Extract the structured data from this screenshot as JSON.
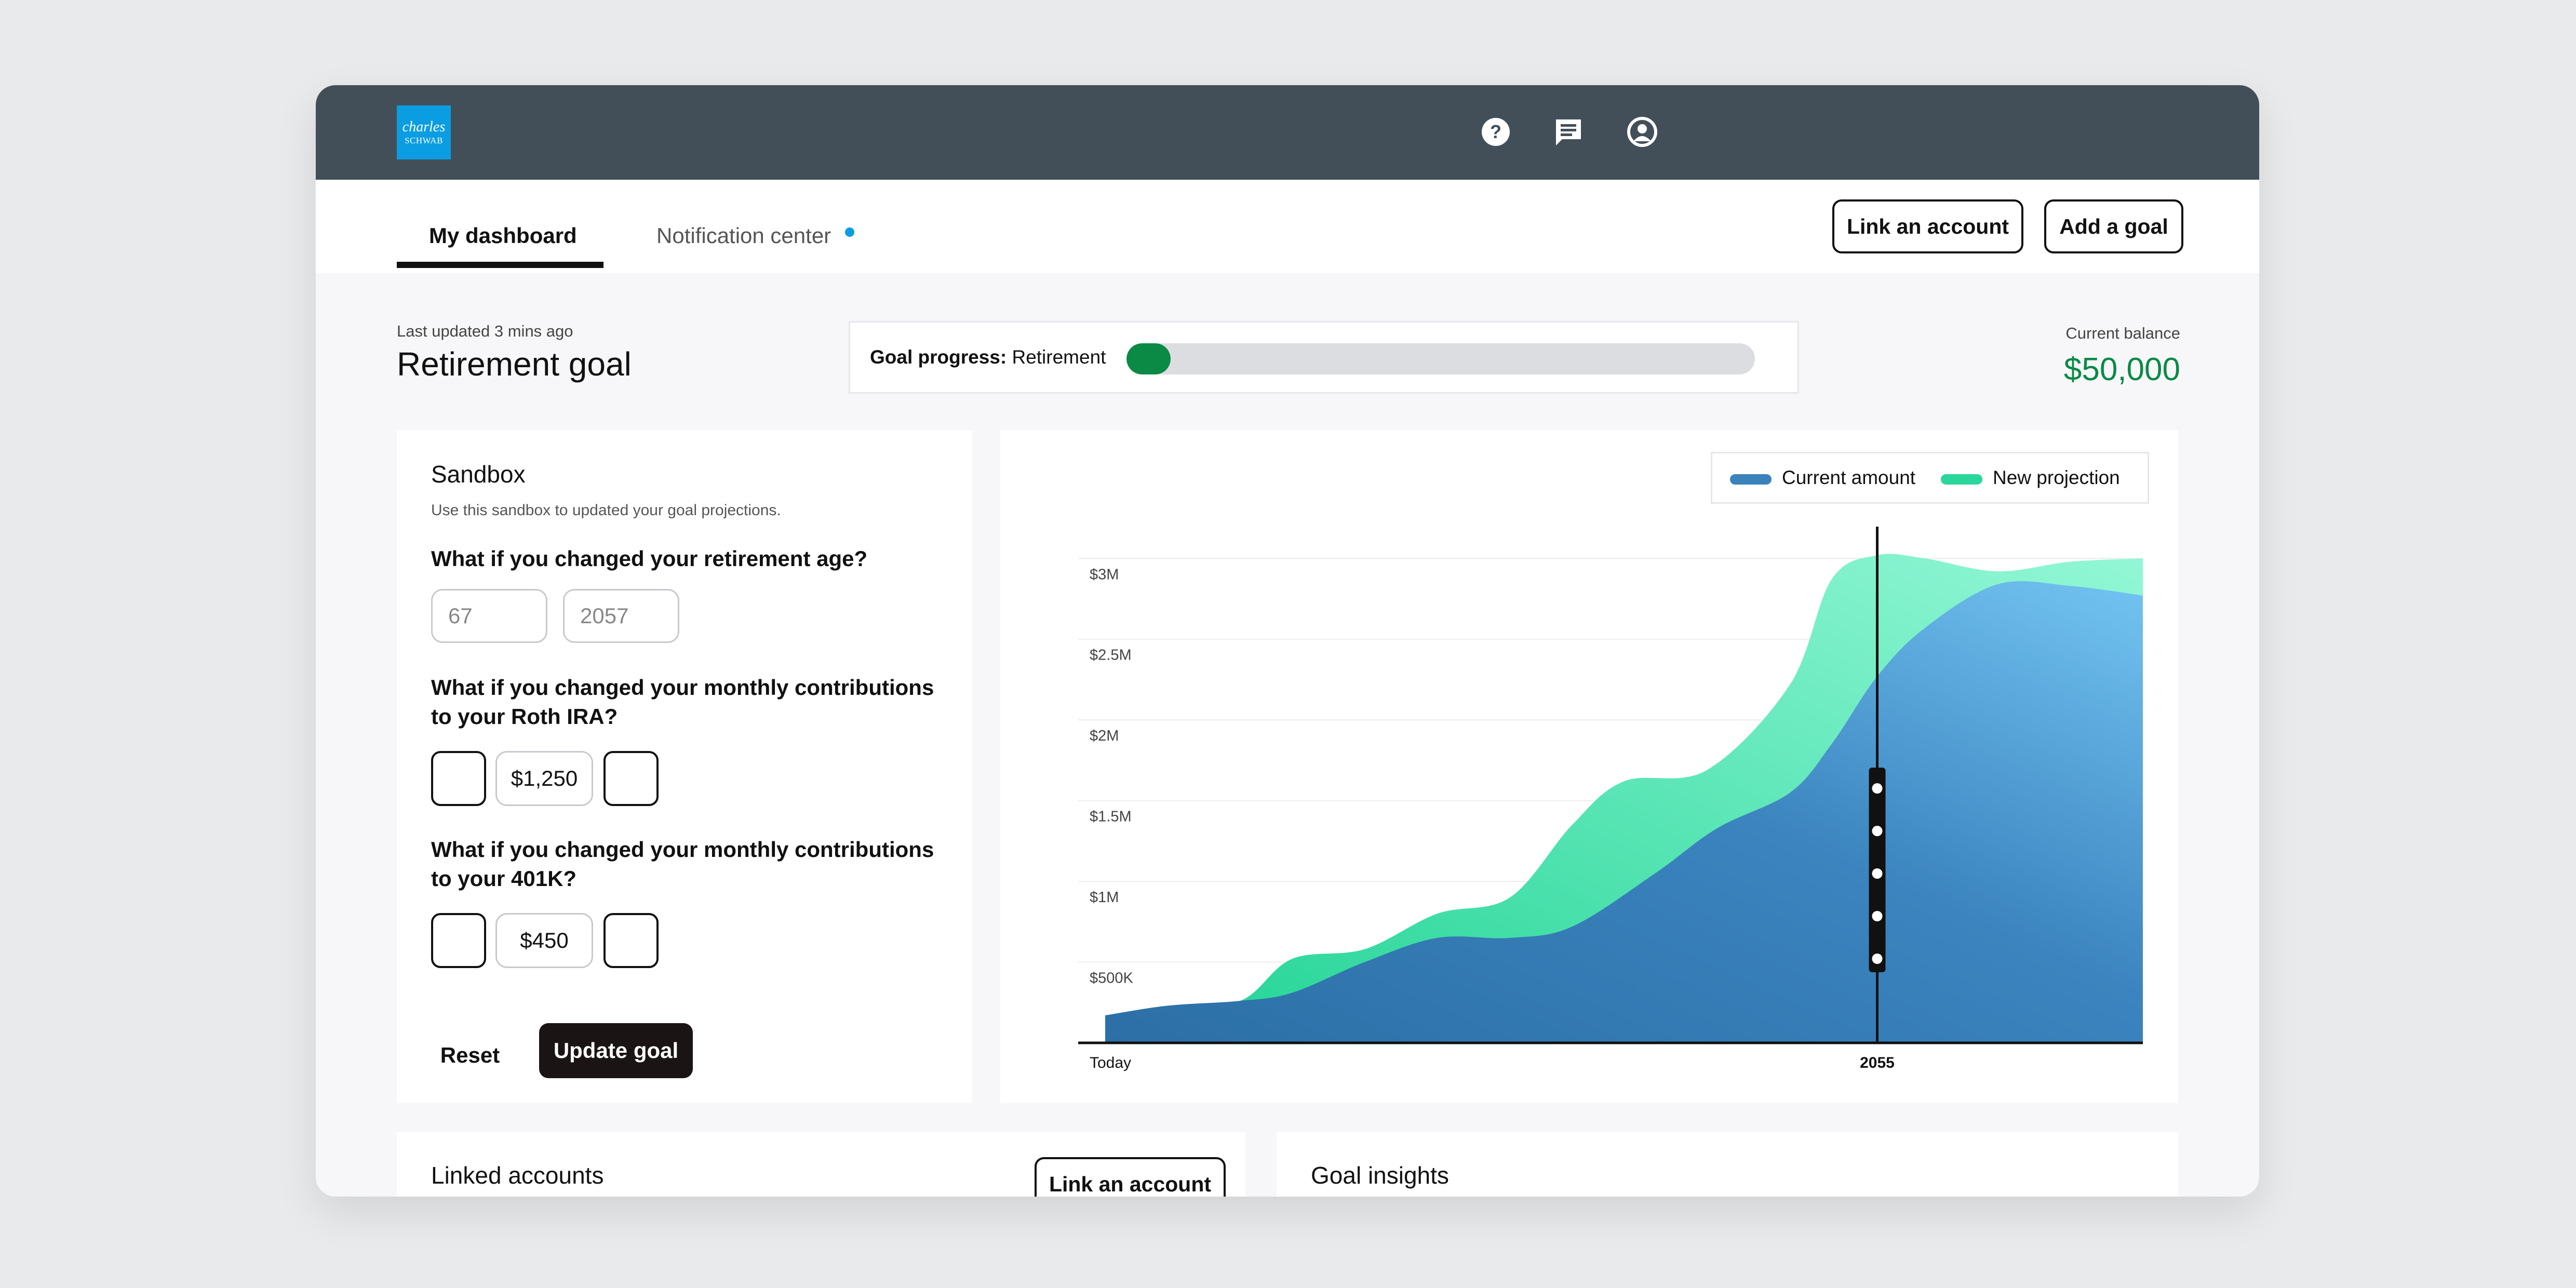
{
  "brand": {
    "logo_line1": "charles",
    "logo_line2": "SCHWAB",
    "accent": "#0b9de2"
  },
  "topbar": {
    "icons": [
      {
        "name": "help-icon",
        "label": "?"
      },
      {
        "name": "chat-icon"
      },
      {
        "name": "user-icon"
      }
    ]
  },
  "tabs": [
    {
      "label": "My dashboard",
      "active": true
    },
    {
      "label": "Notification center",
      "active": false,
      "has_dot": true
    }
  ],
  "header_actions": {
    "link_account": "Link an account",
    "add_goal": "Add a goal"
  },
  "goal": {
    "last_updated": "Last updated 3 mins ago",
    "title": "Retirement goal",
    "progress_label_bold": "Goal progress:",
    "progress_label_rest": " Retirement",
    "progress_fraction": 0.07,
    "balance_label": "Current balance",
    "balance_value": "$50,000",
    "progress_color": "#0a8a45"
  },
  "sandbox": {
    "title": "Sandbox",
    "subtitle": "Use this sandbox to updated your goal projections.",
    "q1": "What if you changed your retirement age?",
    "age_placeholder": "67",
    "year_placeholder": "2057",
    "q2": "What if you changed your monthly contributions to your Roth IRA?",
    "roth_value": "$1,250",
    "q3": "What if you changed your monthly contributions to your 401K?",
    "k401_value": "$450",
    "reset_label": "Reset",
    "update_label": "Update goal"
  },
  "chart_data": {
    "type": "area",
    "legend": [
      {
        "name": "Current amount",
        "color": "#3a82bb"
      },
      {
        "name": "New projection",
        "color": "#2ad69a"
      }
    ],
    "y_ticks": [
      {
        "label": "$500K",
        "value": 500000
      },
      {
        "label": "$1M",
        "value": 1000000
      },
      {
        "label": "$1.5M",
        "value": 1500000
      },
      {
        "label": "$2M",
        "value": 2000000
      },
      {
        "label": "$2.5M",
        "value": 2500000
      },
      {
        "label": "$3M",
        "value": 3000000
      }
    ],
    "x_labels": [
      {
        "label": "Today",
        "t": 0.0
      },
      {
        "label": "2055",
        "t": 0.744
      }
    ],
    "marker_t": 0.744,
    "ylim": [
      0,
      3300000
    ],
    "series": [
      {
        "name": "Current amount",
        "points": [
          [
            0.0,
            170000
          ],
          [
            0.06,
            230000
          ],
          [
            0.13,
            260000
          ],
          [
            0.18,
            310000
          ],
          [
            0.25,
            500000
          ],
          [
            0.32,
            650000
          ],
          [
            0.39,
            650000
          ],
          [
            0.45,
            720000
          ],
          [
            0.53,
            1050000
          ],
          [
            0.59,
            1330000
          ],
          [
            0.66,
            1550000
          ],
          [
            0.7,
            1850000
          ],
          [
            0.744,
            2270000
          ],
          [
            0.79,
            2570000
          ],
          [
            0.86,
            2840000
          ],
          [
            0.93,
            2830000
          ],
          [
            1.0,
            2770000
          ]
        ]
      },
      {
        "name": "New projection",
        "points": [
          [
            0.0,
            170000
          ],
          [
            0.06,
            230000
          ],
          [
            0.13,
            260000
          ],
          [
            0.18,
            520000
          ],
          [
            0.25,
            580000
          ],
          [
            0.32,
            800000
          ],
          [
            0.39,
            900000
          ],
          [
            0.45,
            1350000
          ],
          [
            0.5,
            1620000
          ],
          [
            0.58,
            1690000
          ],
          [
            0.66,
            2220000
          ],
          [
            0.7,
            2870000
          ],
          [
            0.744,
            3020000
          ],
          [
            0.79,
            3000000
          ],
          [
            0.86,
            2920000
          ],
          [
            0.93,
            2980000
          ],
          [
            1.0,
            3000000
          ]
        ]
      }
    ]
  },
  "linked": {
    "title": "Linked accounts",
    "button": "Link an account"
  },
  "insights": {
    "title": "Goal insights"
  }
}
